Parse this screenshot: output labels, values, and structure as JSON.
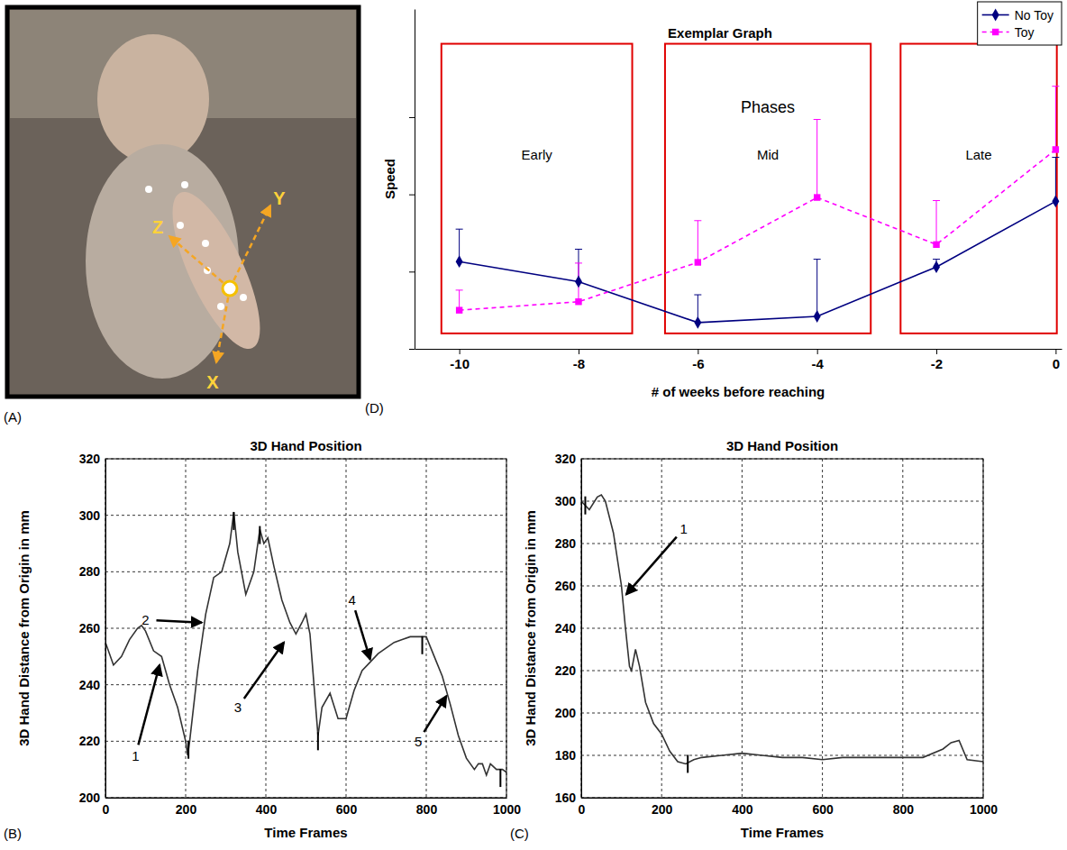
{
  "panel_a": {
    "panel_label": "(A)",
    "axis_labels": [
      "Z",
      "Y",
      "X"
    ]
  },
  "chart_data": [
    {
      "type": "line",
      "panel_label": "(B)",
      "title": "3D Hand Position",
      "x_label": "Time Frames",
      "y_label": "3D Hand Distance from Origin in mm",
      "x": [
        0,
        20,
        40,
        60,
        80,
        90,
        100,
        120,
        140,
        160,
        180,
        200,
        205,
        210,
        230,
        250,
        270,
        290,
        310,
        320,
        330,
        350,
        370,
        385,
        395,
        405,
        420,
        440,
        460,
        475,
        490,
        500,
        510,
        520,
        530,
        540,
        560,
        580,
        600,
        620,
        640,
        660,
        680,
        700,
        720,
        740,
        760,
        780,
        800,
        820,
        840,
        860,
        880,
        900,
        920,
        930,
        940,
        950,
        960,
        975,
        990,
        1000
      ],
      "values": [
        255,
        247,
        250,
        256,
        260,
        261,
        259,
        252,
        250,
        240,
        232,
        220,
        215,
        220,
        245,
        265,
        278,
        280,
        290,
        301,
        287,
        272,
        280,
        295,
        290,
        292,
        282,
        270,
        262,
        258,
        262,
        265,
        258,
        240,
        222,
        232,
        237,
        228,
        228,
        238,
        245,
        248,
        251,
        253,
        255,
        256,
        257,
        257,
        257,
        250,
        243,
        233,
        222,
        214,
        210,
        212,
        212,
        208,
        212,
        210,
        210,
        209
      ],
      "color": "#333333",
      "grid": true,
      "xlim": [
        0,
        1000
      ],
      "xticks": [
        0,
        200,
        400,
        600,
        800,
        1000
      ],
      "ylim": [
        200,
        320
      ],
      "yticks": [
        200,
        220,
        240,
        260,
        280,
        300,
        320
      ],
      "events": [
        {
          "x": 0,
          "y": 250
        },
        {
          "x": 207,
          "y": 217
        },
        {
          "x": 320,
          "y": 298
        },
        {
          "x": 385,
          "y": 293
        },
        {
          "x": 530,
          "y": 220
        },
        {
          "x": 790,
          "y": 254
        },
        {
          "x": 985,
          "y": 207
        }
      ],
      "annotations": [
        {
          "text": "1",
          "x": 75,
          "y": 215,
          "arrow_to": [
            135,
            247
          ]
        },
        {
          "text": "2",
          "x": 100,
          "y": 263,
          "arrow_to": [
            240,
            262
          ]
        },
        {
          "text": "3",
          "x": 330,
          "y": 232,
          "arrow_to": [
            445,
            255
          ]
        },
        {
          "text": "4",
          "x": 615,
          "y": 270,
          "arrow_to": [
            660,
            249
          ]
        },
        {
          "text": "5",
          "x": 780,
          "y": 220,
          "arrow_to": [
            850,
            236
          ]
        }
      ]
    },
    {
      "type": "line",
      "panel_label": "(C)",
      "title": "3D Hand Position",
      "x_label": "Time Frames",
      "y_label": "3D Hand Distance from Origin in mm",
      "x": [
        0,
        10,
        20,
        40,
        50,
        60,
        80,
        100,
        110,
        120,
        125,
        135,
        145,
        160,
        180,
        200,
        220,
        240,
        260,
        280,
        300,
        350,
        400,
        450,
        500,
        550,
        600,
        650,
        700,
        750,
        800,
        850,
        900,
        920,
        940,
        960,
        1000
      ],
      "values": [
        300,
        298,
        296,
        302,
        303,
        300,
        285,
        260,
        240,
        222,
        220,
        230,
        222,
        205,
        195,
        190,
        182,
        177,
        176,
        178,
        179,
        180,
        181,
        180,
        179,
        179,
        178,
        179,
        179,
        179,
        179,
        179,
        183,
        186,
        187,
        178,
        177
      ],
      "color": "#333333",
      "grid": true,
      "xlim": [
        0,
        1000
      ],
      "xticks": [
        0,
        200,
        400,
        600,
        800,
        1000
      ],
      "ylim": [
        160,
        320
      ],
      "yticks": [
        160,
        180,
        200,
        220,
        240,
        260,
        280,
        300,
        320
      ],
      "events": [
        {
          "x": 10,
          "y": 298
        },
        {
          "x": 265,
          "y": 176
        }
      ],
      "annotations": [
        {
          "text": "1",
          "x": 255,
          "y": 287,
          "arrow_to": [
            112,
            256
          ]
        }
      ]
    },
    {
      "type": "line",
      "panel_label": "(D)",
      "title": "Exemplar Graph",
      "x_label": "# of weeks before reaching",
      "y_label": "Speed",
      "x": [
        -10,
        -8,
        -6,
        -4,
        -2,
        0
      ],
      "series": [
        {
          "name": "No Toy",
          "color": "#000080",
          "marker": "diamond",
          "line_style": "solid",
          "values": [
            1.13,
            0.87,
            0.34,
            0.42,
            1.06,
            1.91
          ],
          "errors": [
            0.42,
            0.42,
            0.36,
            0.74,
            0.1,
            0.57
          ]
        },
        {
          "name": "Toy",
          "color": "#ff00ff",
          "marker": "square",
          "line_style": "dashed",
          "values": [
            0.5,
            0.61,
            1.12,
            1.96,
            1.35,
            2.58
          ],
          "errors": [
            0.26,
            0.5,
            0.54,
            1.01,
            0.57,
            0.82
          ]
        }
      ],
      "xlim": [
        -10.75,
        0.1
      ],
      "xticks": [
        -10,
        -8,
        -6,
        -4,
        -2,
        0
      ],
      "ylim": [
        0,
        4.4
      ],
      "yticks": [
        0,
        1,
        2,
        3
      ],
      "tick_labels": "x",
      "legend": "top-right",
      "phases_title": "Phases",
      "phases": [
        {
          "label": "Early",
          "x0": -10.3,
          "x1": -7.1,
          "y0": 0.2,
          "y1": 3.95
        },
        {
          "label": "Mid",
          "x0": -6.55,
          "x1": -3.1,
          "y0": 0.2,
          "y1": 3.95
        },
        {
          "label": "Late",
          "x0": -2.6,
          "x1": 0.02,
          "y0": 0.2,
          "y1": 3.95
        }
      ]
    }
  ]
}
